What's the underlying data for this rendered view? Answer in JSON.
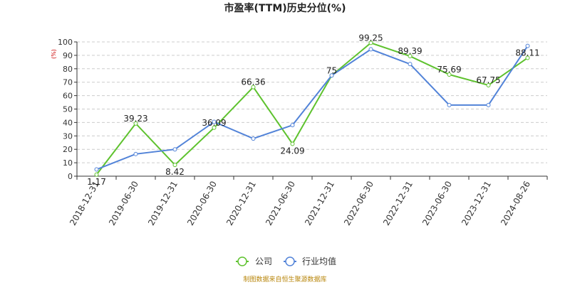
{
  "chart_data": {
    "type": "line",
    "title": "市盈率(TTM)历史分位(%)",
    "ylabel": "(%)",
    "xlabel": "",
    "ylim": [
      0,
      100
    ],
    "yticks": [
      0,
      10,
      20,
      30,
      40,
      50,
      60,
      70,
      80,
      90,
      100
    ],
    "grid": true,
    "legend_position": "bottom-center",
    "categories": [
      "2018-12-31",
      "2019-06-30",
      "2019-12-31",
      "2020-06-30",
      "2020-12-31",
      "2021-06-30",
      "2021-12-31",
      "2022-06-30",
      "2022-12-31",
      "2023-06-30",
      "2023-12-31",
      "2024-08-26"
    ],
    "series": [
      {
        "name": "公司",
        "color": "#5ec22e",
        "values": [
          1.17,
          39.23,
          8.42,
          36.09,
          66.36,
          24.09,
          75,
          99.25,
          89.39,
          75.69,
          67.75,
          88.11
        ],
        "labels": [
          "1.17",
          "39.23",
          "8.42",
          "36.09",
          "66.36",
          "24.09",
          "75",
          "99.25",
          "89.39",
          "75.69",
          "67.75",
          "88.11"
        ]
      },
      {
        "name": "行业均值",
        "color": "#5283d8",
        "values": [
          5,
          16.5,
          20,
          40.5,
          28,
          38,
          75,
          94.5,
          83.5,
          53,
          53,
          97
        ]
      }
    ]
  },
  "source_note": "制图数据来自恒生聚源数据库"
}
